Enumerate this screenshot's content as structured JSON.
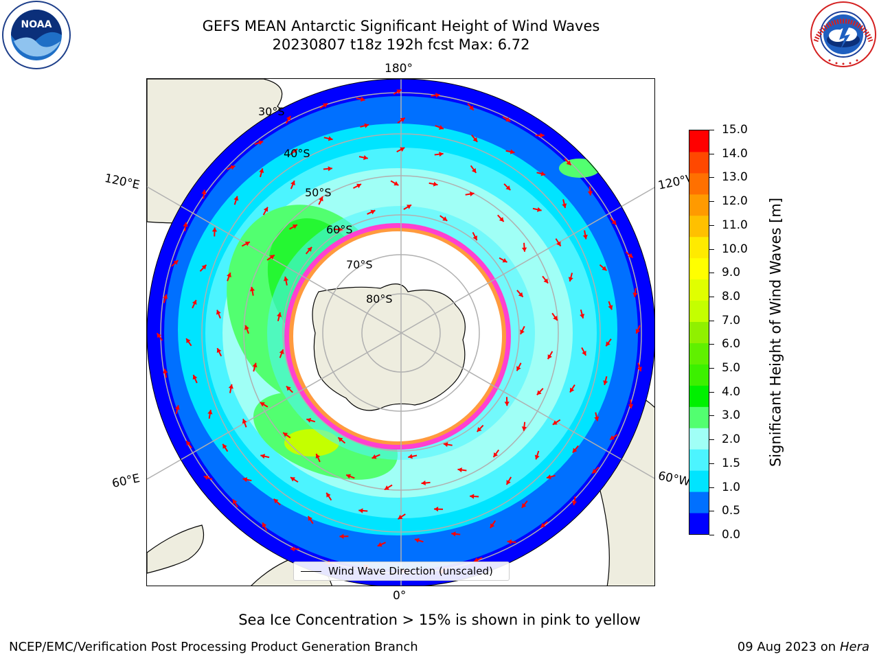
{
  "title_line1": "GEFS MEAN Antarctic Significant Height of Wind Waves",
  "title_line2": "20230807 t18z 192h fcst   Max: 6.72",
  "logos": {
    "left": "noaa-logo",
    "right": "national-weather-service-logo"
  },
  "map": {
    "projection": "south-polar-stereographic",
    "lon_labels": {
      "top": "180°",
      "bottom": "0°",
      "upper_left": "120°E",
      "upper_right": "120°W",
      "lower_left": "60°E",
      "lower_right": "60°W"
    },
    "lat_labels": [
      "30°S",
      "40°S",
      "50°S",
      "60°S",
      "70°S",
      "80°S"
    ],
    "legend": "Wind Wave Direction (unscaled)",
    "land_color": "#eeeddf",
    "arrow_color": "#ff0000"
  },
  "colorbar": {
    "label": "Significant Height of Wind Waves [m]",
    "ticks": [
      "15.0",
      "14.0",
      "13.0",
      "12.0",
      "11.0",
      "10.0",
      "9.0",
      "8.0",
      "7.0",
      "6.0",
      "5.0",
      "4.0",
      "3.0",
      "2.0",
      "1.5",
      "1.0",
      "0.5",
      "0.0"
    ],
    "colors": [
      "#0000ff",
      "#0070ff",
      "#00e4ff",
      "#4cf4ff",
      "#a0fff6",
      "#52ff70",
      "#00f000",
      "#3cf000",
      "#60f000",
      "#90f000",
      "#c4ff00",
      "#e0ff00",
      "#ffff00",
      "#ffea00",
      "#ffc000",
      "#ff9a00",
      "#ff7000",
      "#ff4800",
      "#ff0000"
    ]
  },
  "caption": "Sea Ice Concentration > 15% is shown in pink to yellow",
  "footer_left": "NCEP/EMC/Verification Post Processing Product Generation Branch",
  "footer_date": "09 Aug 2023 on",
  "footer_machine": "Hera"
}
